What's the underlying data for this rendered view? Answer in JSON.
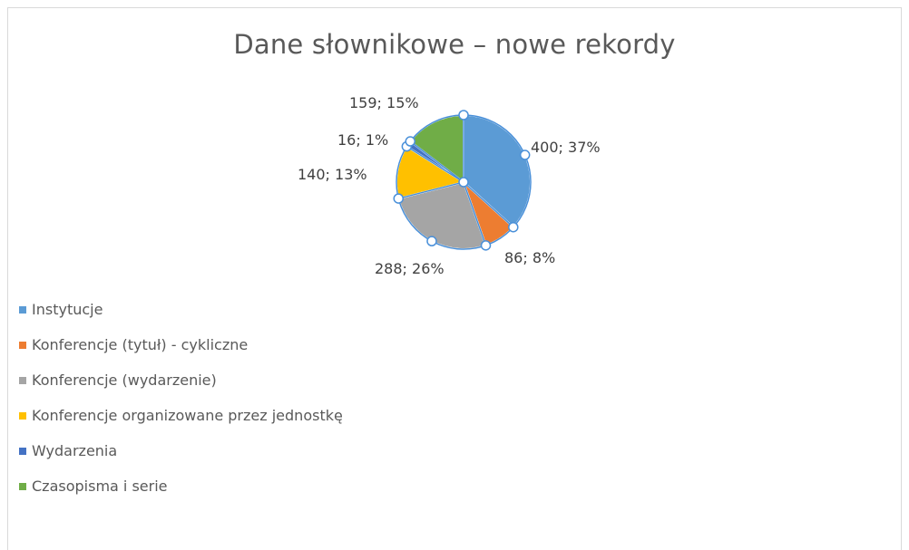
{
  "chart_data": {
    "type": "pie",
    "title": "Dane słownikowe – nowe rekordy",
    "categories": [
      "Instytucje",
      "Konferencje (tytuł) - cykliczne",
      "Konferencje (wydarzenie)",
      "Konferencje organizowane przez jednostkę",
      "Wydarzenia",
      "Czasopisma i serie"
    ],
    "values": [
      400,
      86,
      288,
      140,
      16,
      159
    ],
    "data_labels": [
      "400; 37%",
      "86; 8%",
      "288; 26%",
      "140; 13%",
      "16; 1%",
      "159; 15%"
    ],
    "colors": [
      "#5b9bd5",
      "#ed7d31",
      "#a5a5a5",
      "#ffc000",
      "#4472c4",
      "#70ad47"
    ],
    "legend_position": "bottom-left",
    "selected": true,
    "selection_color": "#4a90d9"
  }
}
